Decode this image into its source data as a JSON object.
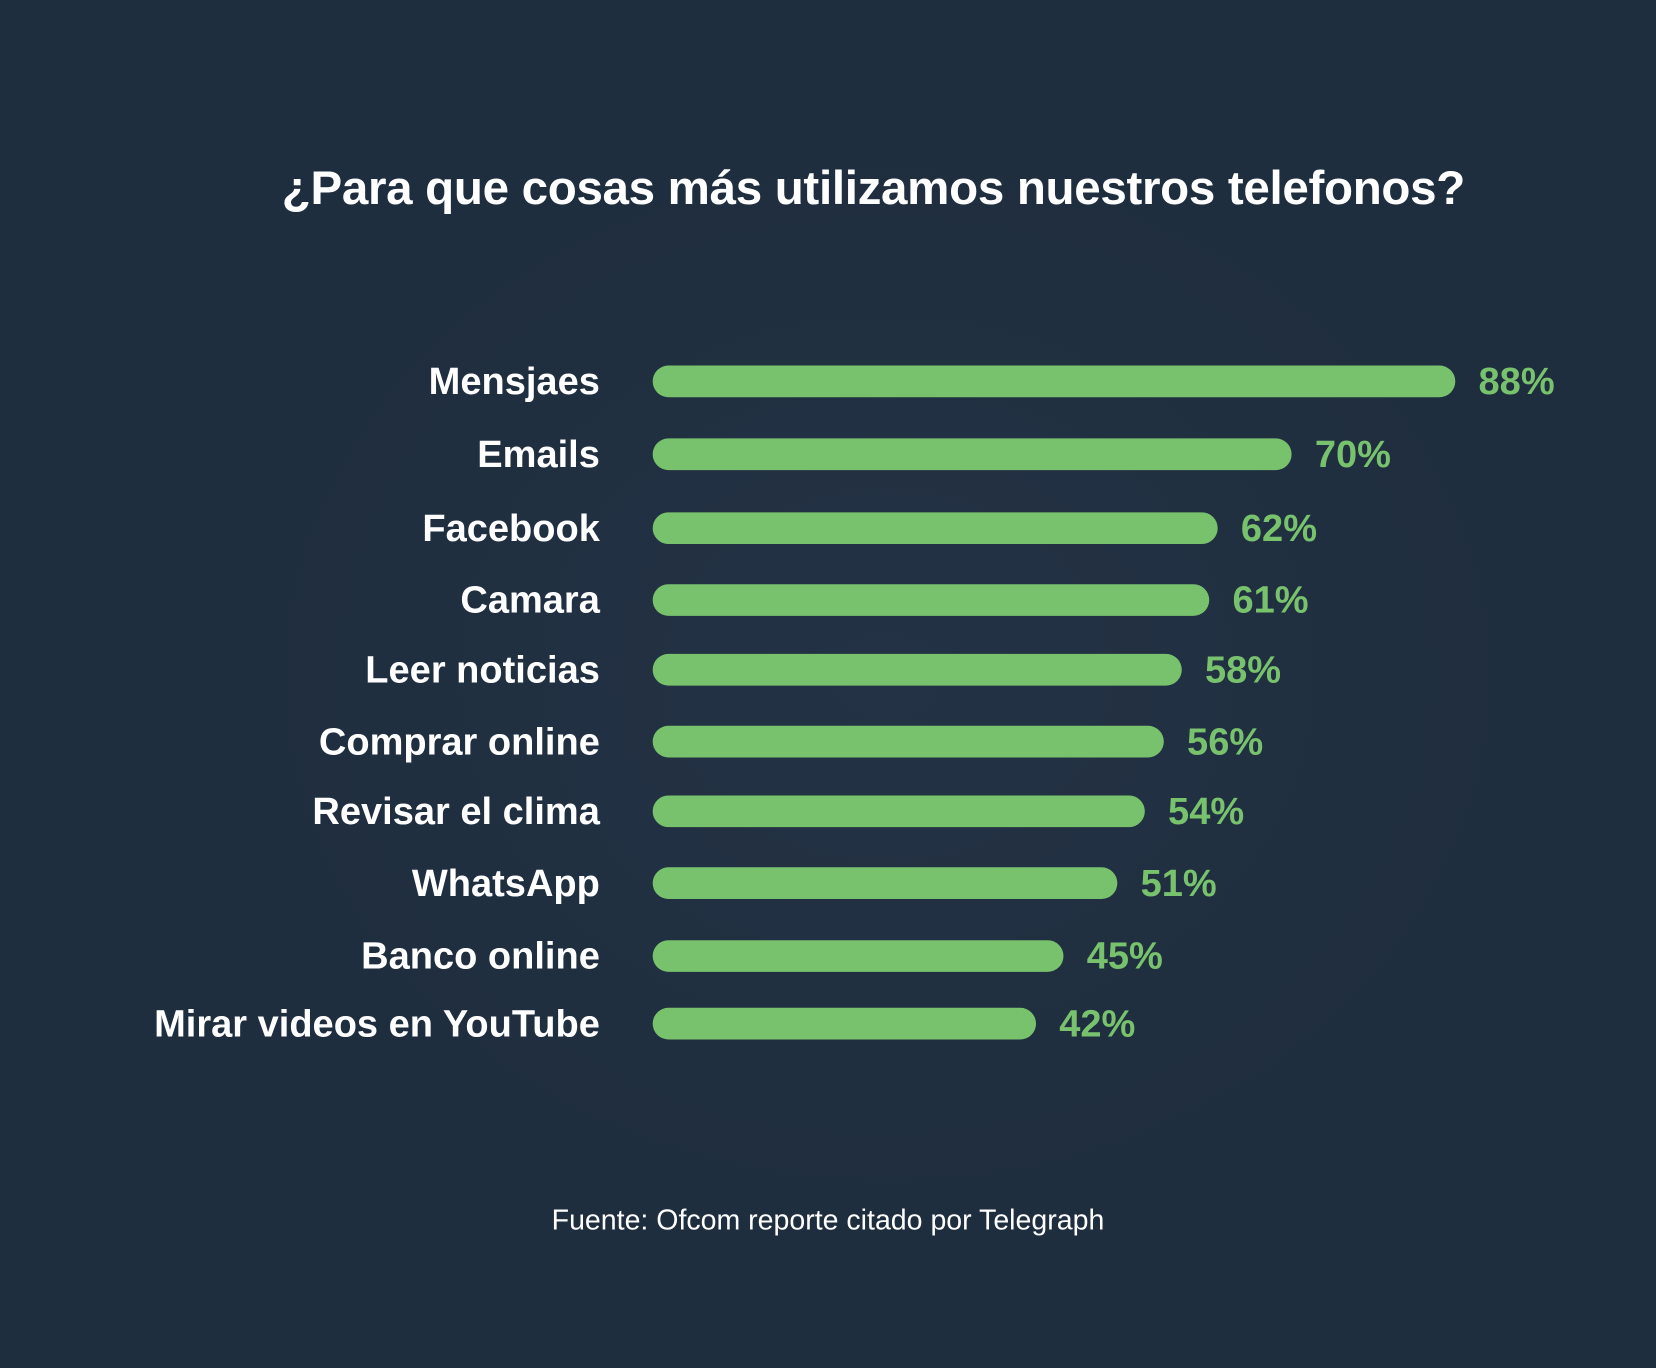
{
  "chart_data": {
    "type": "bar",
    "orientation": "horizontal",
    "title": "¿Para que cosas más utilizamos nuestros telefonos?",
    "categories": [
      "Mensjaes",
      "Emails",
      "Facebook",
      "Camara",
      "Leer noticias",
      "Comprar online",
      "Revisar el clima",
      "WhatsApp",
      "Banco online",
      "Mirar videos en YouTube"
    ],
    "values": [
      88,
      70,
      62,
      61,
      58,
      56,
      54,
      51,
      45,
      42
    ],
    "value_labels": [
      "88%",
      "70%",
      "62%",
      "61%",
      "58%",
      "56%",
      "54%",
      "51%",
      "45%",
      "42%"
    ],
    "xlim": [
      0,
      88
    ],
    "unit": "%",
    "grid": false,
    "legend": "none",
    "source": "Fuente: Ofcom reporte citado por  Telegraph"
  },
  "colors": {
    "background": "#1f2e3e",
    "bar": "#79c26d",
    "value_text": "#79c26d",
    "text": "#ffffff"
  }
}
